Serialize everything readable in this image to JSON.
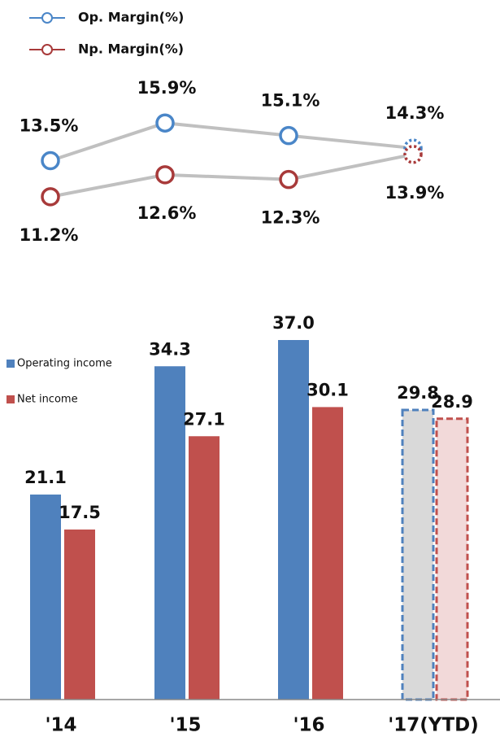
{
  "chart_data": [
    {
      "type": "line",
      "series": [
        {
          "name": "Op. Margin(%)",
          "color": "#4a86c8",
          "values": [
            13.5,
            15.9,
            15.1,
            14.3
          ],
          "value_labels": [
            "13.5%",
            "15.9%",
            "15.1%",
            "14.3%"
          ]
        },
        {
          "name": "Np. Margin(%)",
          "color": "#a83a3a",
          "values": [
            11.2,
            12.6,
            12.3,
            13.9
          ],
          "value_labels": [
            "11.2%",
            "12.6%",
            "12.3%",
            "13.9%"
          ]
        }
      ],
      "ylim": [
        10,
        17
      ]
    },
    {
      "type": "bar",
      "categories": [
        "'14",
        "'15",
        "'16",
        "'17(YTD)"
      ],
      "series": [
        {
          "name": "Operating income",
          "color": "#4f81bd",
          "values": [
            21.1,
            34.3,
            37.0,
            29.8
          ],
          "value_labels": [
            "21.1",
            "34.3",
            "37.0",
            "29.8"
          ]
        },
        {
          "name": "Net income",
          "color": "#c0504d",
          "values": [
            17.5,
            27.1,
            30.1,
            28.9
          ],
          "value_labels": [
            "17.5",
            "27.1",
            "30.1",
            "28.9"
          ]
        }
      ],
      "ylim": [
        0,
        37
      ]
    }
  ]
}
